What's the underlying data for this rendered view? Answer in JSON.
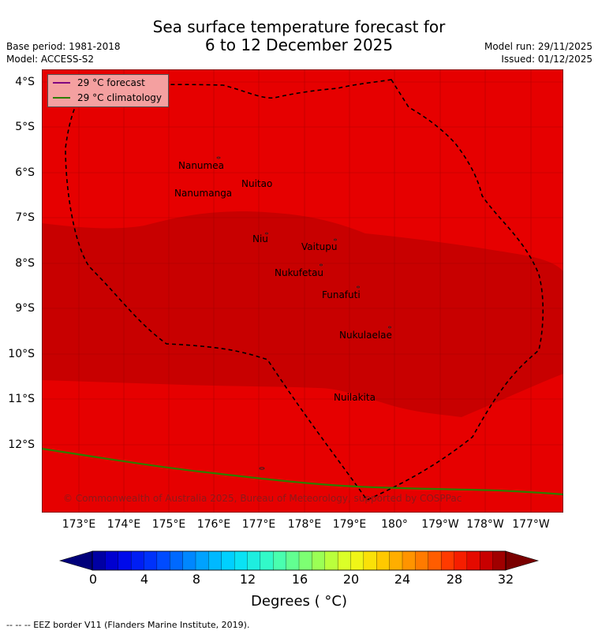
{
  "header": {
    "title_line1": "Sea surface temperature forecast for",
    "title_line2": "6 to 12 December 2025",
    "base_period": "Base period: 1981-2018",
    "model": "Model: ACCESS-S2",
    "model_run": "Model run: 29/11/2025",
    "issued": "Issued: 01/12/2025"
  },
  "legend": {
    "forecast_label": "29 °C  forecast",
    "climatology_label": "29 °C  climatology",
    "forecast_color": "#800080",
    "climatology_color": "#2e7d00"
  },
  "axes": {
    "lat_labels": [
      "4°S",
      "5°S",
      "6°S",
      "7°S",
      "8°S",
      "9°S",
      "10°S",
      "11°S",
      "12°S"
    ],
    "lon_labels": [
      "173°E",
      "174°E",
      "175°E",
      "176°E",
      "177°E",
      "178°E",
      "179°E",
      "180°",
      "179°W",
      "178°W",
      "177°W"
    ]
  },
  "places": [
    "Nanumea",
    "Nuitao",
    "Nanumanga",
    "Niu",
    "Vaitupu",
    "Nukufetau",
    "Funafuti",
    "Nukulaelae",
    "Nuilakita"
  ],
  "copyright": "© Commonwealth of Australia 2025, Bureau of Meteorology, supported by COSPPac",
  "colorbar": {
    "ticks": [
      "0",
      "4",
      "8",
      "12",
      "16",
      "20",
      "24",
      "28",
      "32"
    ],
    "label": "Degrees ( °C)"
  },
  "footer": "--  --  -- EEZ border V11 (Flanders Marine Institute, 2019).",
  "colors": {
    "sst_29_30": "#e60000",
    "sst_30_31": "#c80000"
  }
}
